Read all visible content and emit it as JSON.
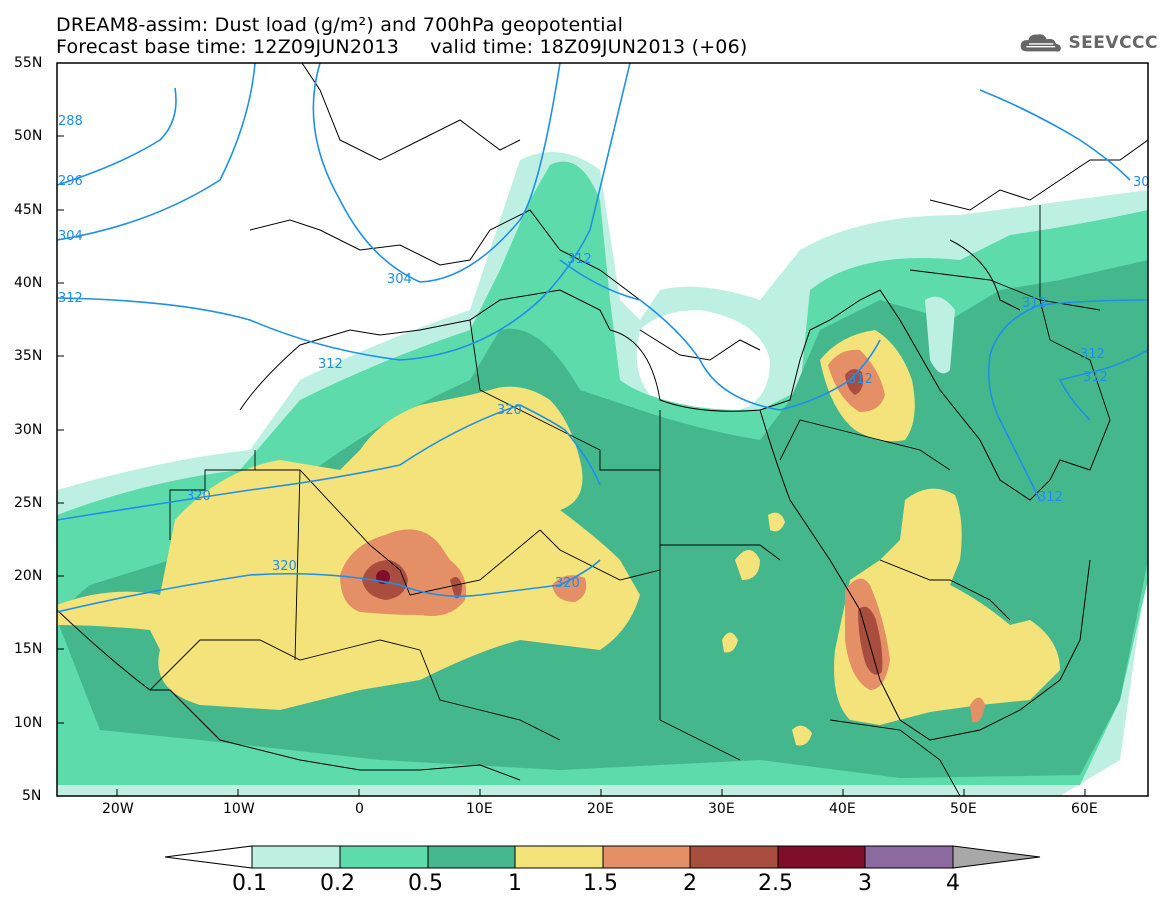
{
  "title": {
    "line1": "DREAM8-assim: Dust load (g/m²) and 700hPa geopotential",
    "line2": "Forecast base time: 12Z09JUN2013     valid time: 18Z09JUN2013 (+06)"
  },
  "logo": {
    "text": "SEEVCCC",
    "icon": "cloud-icon"
  },
  "axes": {
    "lat_labels": [
      "55N",
      "50N",
      "45N",
      "40N",
      "35N",
      "30N",
      "25N",
      "20N",
      "15N",
      "10N",
      "5N"
    ],
    "lon_labels": [
      "20W",
      "10W",
      "0",
      "10E",
      "20E",
      "30E",
      "40E",
      "50E",
      "60E"
    ]
  },
  "contour_labels": [
    "288",
    "296",
    "304",
    "304",
    "312",
    "312",
    "312",
    "312",
    "312",
    "312",
    "312",
    "312",
    "320",
    "320",
    "320",
    "320",
    "30"
  ],
  "colorbar": {
    "labels": [
      "0.1",
      "0.2",
      "0.5",
      "1",
      "1.5",
      "2",
      "2.5",
      "3",
      "4"
    ],
    "colors": [
      "#ffffff",
      "#bdf0e3",
      "#5ddbaa",
      "#44b88c",
      "#f4e27a",
      "#e58f67",
      "#a94e3e",
      "#7f0e2a",
      "#8c6aa0",
      "#a8a8a8"
    ]
  },
  "palette": {
    "c01": "#bdf0e3",
    "c02": "#5ddbaa",
    "c05": "#44b88c",
    "c1": "#f4e27a",
    "c15": "#e58f67",
    "c2": "#a94e3e",
    "c25": "#7f0e2a",
    "contour": "#1e90e8"
  }
}
